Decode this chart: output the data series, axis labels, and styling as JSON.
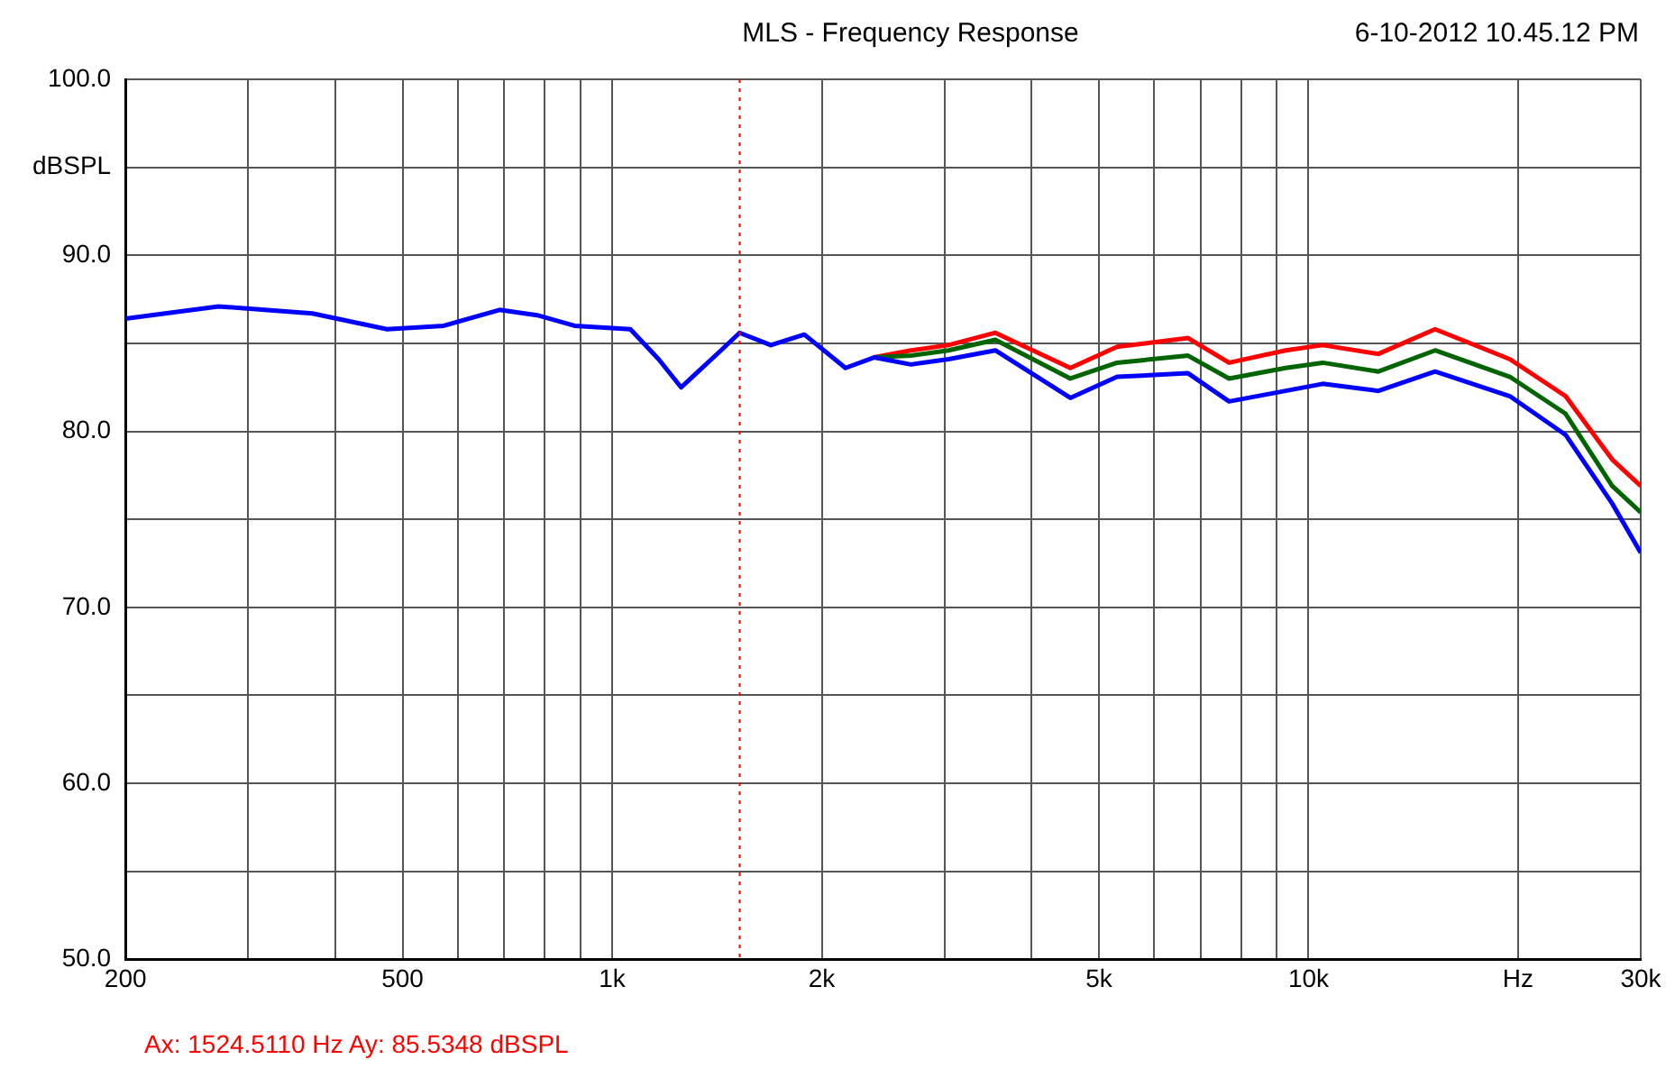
{
  "chart_data": {
    "type": "line",
    "title": "MLS - Frequency Response",
    "subtitle": "6-10-2012 10.45.12 PM",
    "annotations": [
      "Ax: 1524.5110 Hz   Ay: 85.5348 dBSPL"
    ],
    "log": "x",
    "grid": true,
    "legend": false,
    "marker": "none",
    "line_style": "solid",
    "xlim": [
      200,
      30000
    ],
    "xticks": [
      200,
      {
        "value": 300,
        "label": null
      },
      {
        "value": 400,
        "label": null
      },
      500,
      {
        "value": 600,
        "label": null
      },
      {
        "value": 700,
        "label": null
      },
      {
        "value": 800,
        "label": null
      },
      {
        "value": 900,
        "label": null
      },
      {
        "value": 1000,
        "label": "1k"
      },
      {
        "value": 2000,
        "label": "2k"
      },
      {
        "value": 3000,
        "label": null
      },
      {
        "value": 4000,
        "label": null
      },
      {
        "value": 5000,
        "label": "5k"
      },
      {
        "value": 6000,
        "label": null
      },
      {
        "value": 7000,
        "label": null
      },
      {
        "value": 8000,
        "label": null
      },
      {
        "value": 9000,
        "label": null
      },
      {
        "value": 10000,
        "label": "10k"
      },
      {
        "value": 20000,
        "label": "Hz"
      },
      {
        "value": 30000,
        "label": "30k"
      }
    ],
    "ylim": [
      50,
      100
    ],
    "yticks": [
      {
        "value": 50,
        "label": "50.0"
      },
      {
        "value": 55,
        "label": null
      },
      {
        "value": 60,
        "label": "60.0"
      },
      {
        "value": 65,
        "label": null
      },
      {
        "value": 70,
        "label": "70.0"
      },
      {
        "value": 75,
        "label": null
      },
      {
        "value": 80,
        "label": "80.0"
      },
      {
        "value": 85,
        "label": null
      },
      {
        "value": 90,
        "label": "90.0"
      },
      {
        "value": 95,
        "label": "dBSPL"
      },
      {
        "value": 100,
        "label": "100.0"
      }
    ],
    "ref_lines": [
      {
        "axis": "x",
        "value": 1524.511,
        "color": "#ff0000",
        "line_style": "dotted"
      }
    ],
    "x": [
      200,
      272,
      371,
      475,
      573,
      689,
      780,
      883,
      1062,
      1166,
      1256,
      1433,
      1524,
      1690,
      1888,
      2163,
      2377,
      2686,
      3041,
      3550,
      4550,
      5310,
      6715,
      7690,
      9270,
      10480,
      12600,
      15200,
      19460,
      23400,
      27300,
      30000
    ],
    "series": [
      {
        "color": "#ff0000",
        "values": [
          null,
          null,
          null,
          null,
          null,
          null,
          null,
          null,
          null,
          null,
          null,
          null,
          null,
          null,
          null,
          null,
          84.2,
          84.6,
          84.9,
          85.6,
          83.6,
          84.8,
          85.3,
          83.9,
          84.6,
          84.9,
          84.4,
          85.8,
          84.1,
          82.0,
          78.4,
          76.9
        ]
      },
      {
        "color": "#006400",
        "values": [
          null,
          null,
          null,
          null,
          null,
          null,
          null,
          null,
          null,
          null,
          null,
          null,
          null,
          null,
          null,
          null,
          84.2,
          84.3,
          84.6,
          85.2,
          83.0,
          83.9,
          84.3,
          83.0,
          83.6,
          83.9,
          83.4,
          84.6,
          83.1,
          81.0,
          76.9,
          75.4
        ]
      },
      {
        "color": "#0000ff",
        "values": [
          86.4,
          87.1,
          86.7,
          85.8,
          86.0,
          86.9,
          86.6,
          86.0,
          85.8,
          84.1,
          82.5,
          84.6,
          85.6,
          84.9,
          85.5,
          83.6,
          84.2,
          83.8,
          84.1,
          84.6,
          81.9,
          83.1,
          83.3,
          81.7,
          82.3,
          82.7,
          82.3,
          83.4,
          82.0,
          79.8,
          75.9,
          73.1
        ]
      }
    ]
  }
}
